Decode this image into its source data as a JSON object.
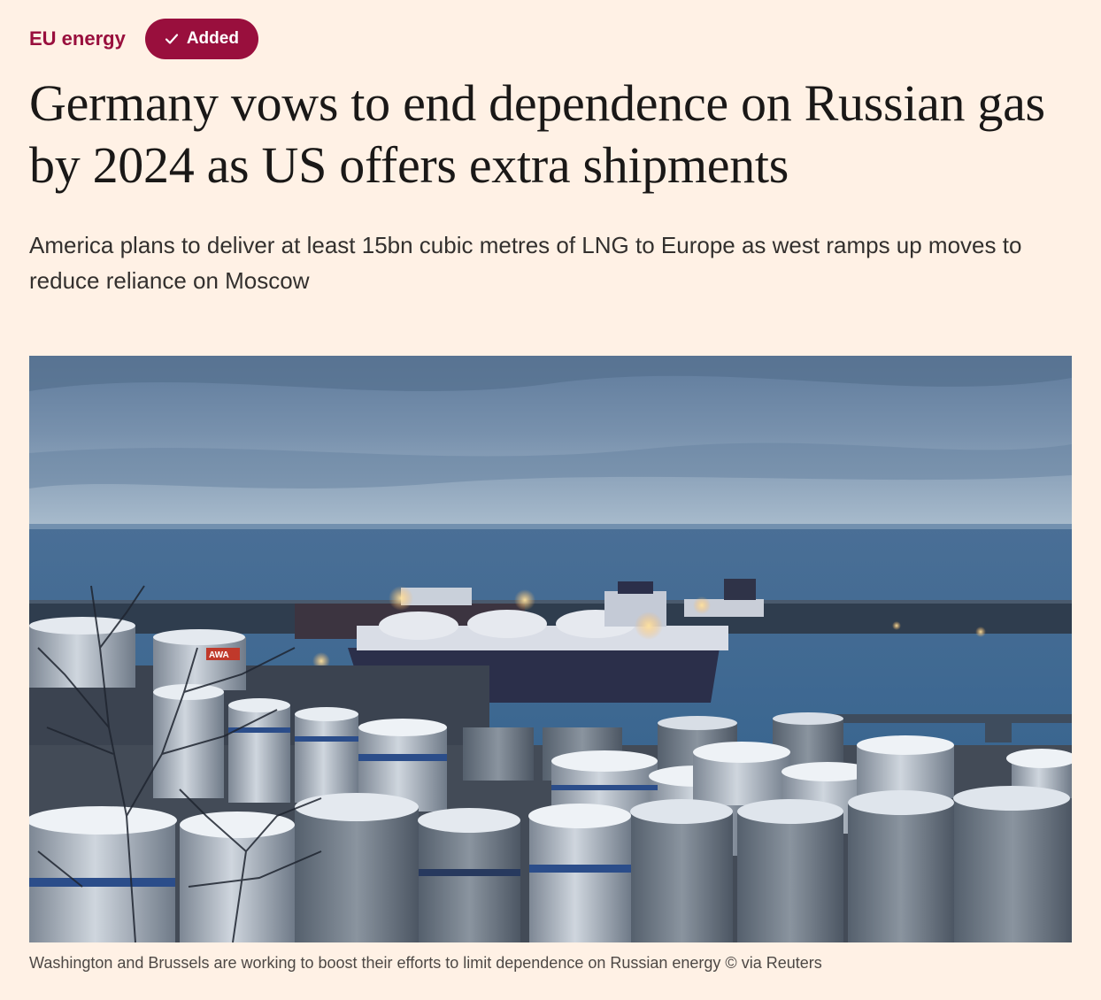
{
  "topic": {
    "label": "EU energy",
    "follow_state_label": "Added",
    "follow_icon": "check-icon"
  },
  "article": {
    "headline": "Germany vows to end dependence on Russian gas by 2024 as US offers extra shipments",
    "standfirst": "America plans to deliver at least 15bn cubic metres of LNG to Europe as west ramps up moves to reduce reliance on Moscow",
    "image": {
      "caption": "Washington and Brussels are working to boost their efforts to limit dependence on Russian energy © via Reuters",
      "tank_label": "AWA"
    }
  },
  "colors": {
    "page_background": "#FFF1E5",
    "brand_claret": "#990F3D",
    "headline_text": "#1A1817",
    "body_text": "#33302E"
  }
}
